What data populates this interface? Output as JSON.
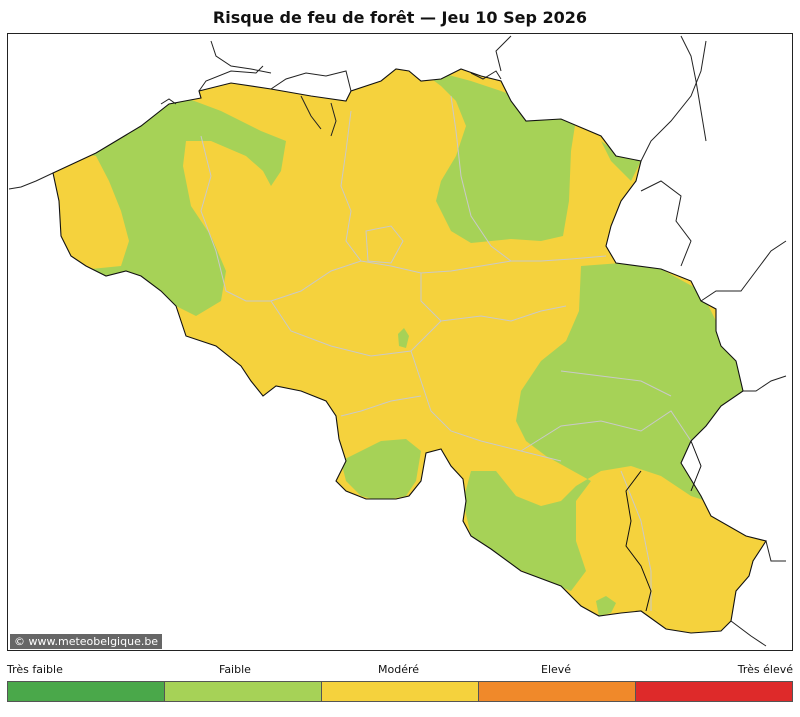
{
  "title": "Risque de feu de forêt  —  Jeu 10 Sep 2026",
  "credit": "© www.meteobelgique.be",
  "legend": {
    "labels": [
      "Très faible",
      "Faible",
      "Modéré",
      "Elevé",
      "Très élevé"
    ],
    "colors": [
      "#4aa84a",
      "#a6d257",
      "#f5d23d",
      "#f0892a",
      "#de2a2a"
    ]
  },
  "map": {
    "region": "Belgique",
    "levels_present": [
      "Faible",
      "Modéré"
    ]
  }
}
